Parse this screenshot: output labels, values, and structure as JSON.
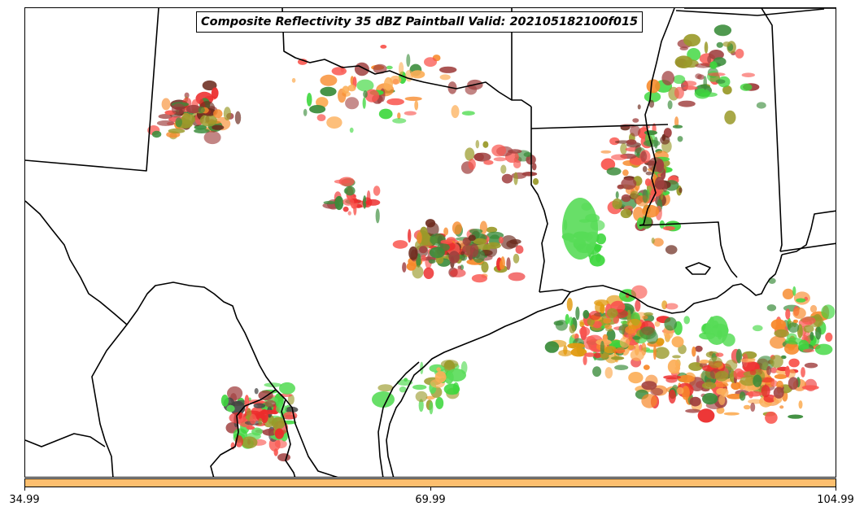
{
  "title": "Composite Reflectivity 35 dBZ Paintball Valid: 202105182100f015",
  "colorbar": {
    "color": "#fdbf6f",
    "ticks": [
      "34.99",
      "69.99",
      "104.99"
    ]
  },
  "colors": {
    "red": "#ec2b2b",
    "light_red": "#f9564f",
    "orange": "#f7892a",
    "light_orange": "#fcae57",
    "gold": "#e29a10",
    "green": "#3dd73d",
    "light_green": "#58dc58",
    "dark_green": "#3a8c3a",
    "olive": "#9a9a2a",
    "brown": "#a0403f",
    "dark_brown": "#6b2a1d",
    "dark_gray": "#444444"
  }
}
